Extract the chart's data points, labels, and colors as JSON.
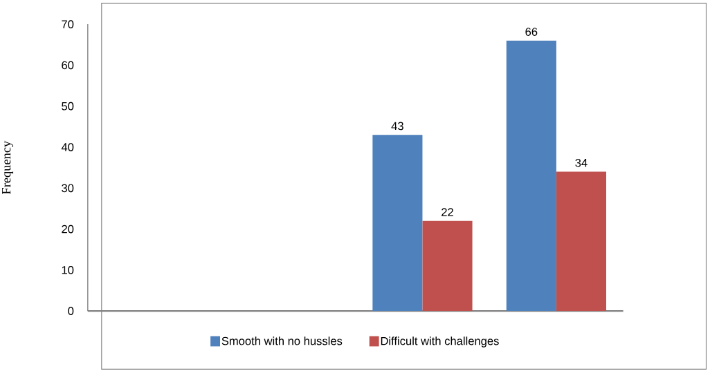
{
  "chart_data": {
    "type": "bar",
    "ylabel": "Frequency",
    "categories": [
      null,
      null,
      null,
      null
    ],
    "series": [
      {
        "name": "Smooth with no hussles",
        "color": "#4f81bd",
        "values": [
          null,
          null,
          43,
          66
        ]
      },
      {
        "name": "Difficult with challenges",
        "color": "#c0504d",
        "values": [
          null,
          null,
          22,
          34
        ]
      }
    ],
    "ylim": [
      0,
      70
    ],
    "yticks": [
      0,
      10,
      20,
      30,
      40,
      50,
      60,
      70
    ],
    "data_labels": true,
    "grid": false,
    "legend": "bottom",
    "tick_labels": "y"
  }
}
